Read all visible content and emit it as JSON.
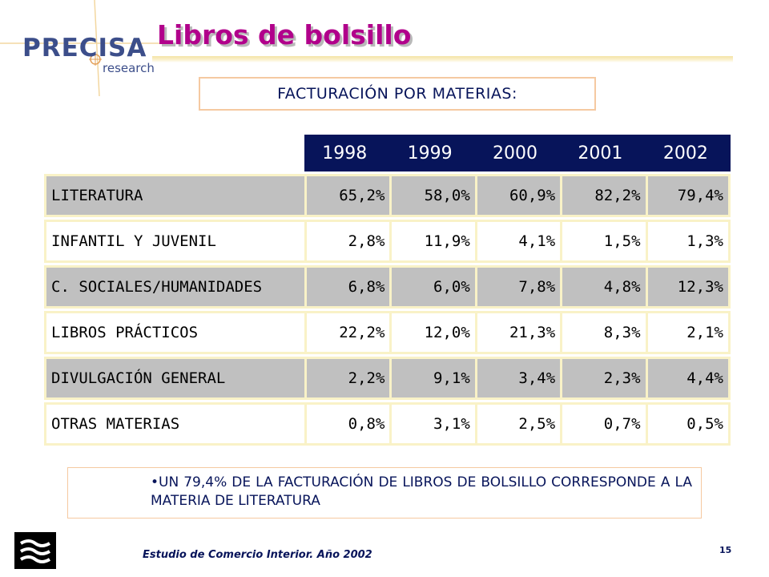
{
  "brand": {
    "name": "PRECISA",
    "sub": "research",
    "color": "#3c4e8a"
  },
  "slide": {
    "title": "Libros de bolsillo",
    "title_color": "#b1008b",
    "subtitle": "FACTURACIÓN POR MATERIAS:"
  },
  "table": {
    "years": [
      "1998",
      "1999",
      "2000",
      "2001",
      "2002"
    ],
    "header_color": "#07145a",
    "rows": [
      {
        "category": "LITERATURA",
        "values": [
          "65,2%",
          "58,0%",
          "60,9%",
          "82,2%",
          "79,4%"
        ],
        "shaded": true
      },
      {
        "category": "INFANTIL Y JUVENIL",
        "values": [
          "2,8%",
          "11,9%",
          "4,1%",
          "1,5%",
          "1,3%"
        ],
        "shaded": false
      },
      {
        "category": "C. SOCIALES/HUMANIDADES",
        "values": [
          "6,8%",
          "6,0%",
          "7,8%",
          "4,8%",
          "12,3%"
        ],
        "shaded": true
      },
      {
        "category": "LIBROS PRÁCTICOS",
        "values": [
          "22,2%",
          "12,0%",
          "21,3%",
          "8,3%",
          "2,1%"
        ],
        "shaded": false
      },
      {
        "category": "DIVULGACIÓN GENERAL",
        "values": [
          "2,2%",
          "9,1%",
          "3,4%",
          "2,3%",
          "4,4%"
        ],
        "shaded": true
      },
      {
        "category": "OTRAS MATERIAS",
        "values": [
          "0,8%",
          "3,1%",
          "2,5%",
          "0,7%",
          "0,5%"
        ],
        "shaded": false
      }
    ]
  },
  "note": "•UN 79,4% DE LA FACTURACIÓN DE LIBROS DE BOLSILLO CORRESPONDE A LA MATERIA DE LITERATURA",
  "footer": {
    "study": "Estudio de Comercio Interior. Año 2002",
    "page": "15"
  }
}
